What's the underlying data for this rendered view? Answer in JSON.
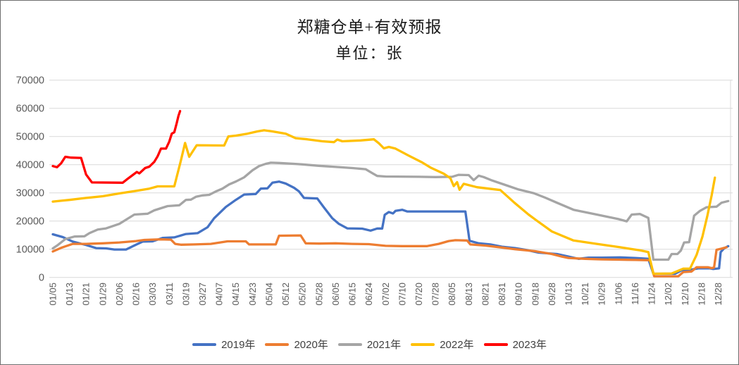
{
  "chart_data": {
    "type": "line",
    "title": "郑糖仓单+有效预报",
    "subtitle": "单位：张",
    "unit": "张",
    "grid": "horizontal",
    "legend_position": "bottom",
    "ylim": [
      0,
      70000
    ],
    "ytick_step": 10000,
    "ytick_labels": [
      "0",
      "10000",
      "20000",
      "30000",
      "40000",
      "50000",
      "60000",
      "70000"
    ],
    "gridline_color": "#D9D9D9",
    "tick_label_color": "#595959",
    "categories": [
      "01/05",
      "01/13",
      "01/21",
      "01/29",
      "02/06",
      "02/16",
      "03/03",
      "03/11",
      "03/19",
      "03/27",
      "04/07",
      "04/15",
      "04/23",
      "05/04",
      "05/12",
      "05/20",
      "05/28",
      "06/05",
      "06/15",
      "06/24",
      "07/02",
      "07/10",
      "07/20",
      "07/28",
      "08/05",
      "08/13",
      "08/21",
      "08/31",
      "09/10",
      "09/18",
      "09/28",
      "10/13",
      "10/21",
      "10/29",
      "11/06",
      "11/16",
      "11/24",
      "12/02",
      "12/10",
      "12/18",
      "12/28"
    ],
    "points_format": "[category_index, value]",
    "series": [
      {
        "name": "2019年",
        "color": "#4472C4",
        "points": [
          [
            0,
            15300
          ],
          [
            0.6,
            14300
          ],
          [
            1.2,
            12700
          ],
          [
            2,
            11500
          ],
          [
            2.6,
            10400
          ],
          [
            3.2,
            10300
          ],
          [
            3.7,
            9900
          ],
          [
            4.4,
            9900
          ],
          [
            5,
            11600
          ],
          [
            5.4,
            12700
          ],
          [
            6,
            12800
          ],
          [
            6.6,
            14000
          ],
          [
            7.3,
            14200
          ],
          [
            8,
            15400
          ],
          [
            8.7,
            15700
          ],
          [
            9.3,
            17800
          ],
          [
            9.7,
            21000
          ],
          [
            10.4,
            25000
          ],
          [
            11,
            27500
          ],
          [
            11.5,
            29400
          ],
          [
            12.2,
            29600
          ],
          [
            12.5,
            31500
          ],
          [
            12.9,
            31600
          ],
          [
            13.2,
            33600
          ],
          [
            13.6,
            34000
          ],
          [
            14,
            33300
          ],
          [
            14.5,
            31800
          ],
          [
            14.8,
            30500
          ],
          [
            15.1,
            28200
          ],
          [
            15.9,
            28000
          ],
          [
            16.3,
            24800
          ],
          [
            16.8,
            21000
          ],
          [
            17.2,
            19000
          ],
          [
            17.7,
            17400
          ],
          [
            18.6,
            17300
          ],
          [
            19.1,
            16600
          ],
          [
            19.5,
            17350
          ],
          [
            19.8,
            17350
          ],
          [
            19.95,
            22200
          ],
          [
            20.2,
            23200
          ],
          [
            20.45,
            22700
          ],
          [
            20.6,
            23600
          ],
          [
            21,
            24000
          ],
          [
            21.3,
            23400
          ],
          [
            24.8,
            23400
          ],
          [
            25.05,
            13000
          ],
          [
            25.6,
            12100
          ],
          [
            26.3,
            11700
          ],
          [
            27,
            10900
          ],
          [
            27.8,
            10400
          ],
          [
            28.5,
            9700
          ],
          [
            29.2,
            8800
          ],
          [
            30.3,
            8300
          ],
          [
            31,
            7400
          ],
          [
            31.6,
            6600
          ],
          [
            32.2,
            7000
          ],
          [
            33,
            7000
          ],
          [
            34.1,
            7100
          ],
          [
            35,
            6900
          ],
          [
            35.8,
            6600
          ],
          [
            36.1,
            1300
          ],
          [
            37.4,
            1300
          ],
          [
            37.8,
            2500
          ],
          [
            38.3,
            2700
          ],
          [
            38.8,
            3200
          ],
          [
            39.5,
            3200
          ],
          [
            39.7,
            3000
          ],
          [
            40.05,
            3200
          ],
          [
            40.15,
            9000
          ],
          [
            40.35,
            10300
          ],
          [
            40.6,
            11100
          ]
        ]
      },
      {
        "name": "2020年",
        "color": "#ED7D31",
        "points": [
          [
            0,
            9200
          ],
          [
            0.5,
            10500
          ],
          [
            1.2,
            11900
          ],
          [
            2,
            11900
          ],
          [
            3,
            12100
          ],
          [
            4,
            12400
          ],
          [
            5,
            12900
          ],
          [
            5.5,
            13300
          ],
          [
            6.5,
            13500
          ],
          [
            7.1,
            13400
          ],
          [
            7.35,
            11900
          ],
          [
            7.7,
            11600
          ],
          [
            8.5,
            11700
          ],
          [
            9.5,
            11900
          ],
          [
            10.5,
            12800
          ],
          [
            11.6,
            12800
          ],
          [
            11.8,
            11700
          ],
          [
            13.4,
            11700
          ],
          [
            13.6,
            14800
          ],
          [
            14.9,
            14900
          ],
          [
            15.2,
            12100
          ],
          [
            16,
            12000
          ],
          [
            17,
            12100
          ],
          [
            18,
            11900
          ],
          [
            19,
            11800
          ],
          [
            20,
            11200
          ],
          [
            21,
            11100
          ],
          [
            22.5,
            11100
          ],
          [
            23.2,
            11900
          ],
          [
            23.8,
            12900
          ],
          [
            24.2,
            13200
          ],
          [
            24.9,
            13100
          ],
          [
            25.1,
            11700
          ],
          [
            26,
            11300
          ],
          [
            27,
            10600
          ],
          [
            27.8,
            10000
          ],
          [
            29,
            9300
          ],
          [
            30,
            8300
          ],
          [
            30.6,
            7400
          ],
          [
            31,
            6900
          ],
          [
            32,
            6600
          ],
          [
            33,
            6400
          ],
          [
            34,
            6300
          ],
          [
            35,
            6200
          ],
          [
            35.9,
            6100
          ],
          [
            36.15,
            400
          ],
          [
            37.6,
            400
          ],
          [
            37.9,
            1900
          ],
          [
            38.4,
            2100
          ],
          [
            38.7,
            3600
          ],
          [
            39.4,
            3600
          ],
          [
            39.6,
            3300
          ],
          [
            39.75,
            3500
          ],
          [
            39.9,
            9800
          ],
          [
            40.2,
            10200
          ],
          [
            40.5,
            10700
          ]
        ]
      },
      {
        "name": "2021年",
        "color": "#A5A5A5",
        "points": [
          [
            0,
            10300
          ],
          [
            0.3,
            11500
          ],
          [
            0.75,
            13600
          ],
          [
            1.3,
            14500
          ],
          [
            1.9,
            14600
          ],
          [
            2.2,
            15700
          ],
          [
            2.7,
            17000
          ],
          [
            3.2,
            17400
          ],
          [
            4,
            19000
          ],
          [
            4.9,
            22300
          ],
          [
            5.7,
            22600
          ],
          [
            6.1,
            23800
          ],
          [
            6.9,
            25300
          ],
          [
            7.6,
            25600
          ],
          [
            8,
            27500
          ],
          [
            8.3,
            27600
          ],
          [
            8.6,
            28600
          ],
          [
            9,
            29100
          ],
          [
            9.4,
            29300
          ],
          [
            9.8,
            30500
          ],
          [
            10.2,
            31500
          ],
          [
            10.6,
            33000
          ],
          [
            11,
            34000
          ],
          [
            11.5,
            35500
          ],
          [
            12,
            38000
          ],
          [
            12.4,
            39500
          ],
          [
            12.8,
            40300
          ],
          [
            13.1,
            40700
          ],
          [
            13.6,
            40600
          ],
          [
            14.5,
            40300
          ],
          [
            15,
            40100
          ],
          [
            16,
            39600
          ],
          [
            17,
            39200
          ],
          [
            18,
            38800
          ],
          [
            18.8,
            38400
          ],
          [
            19.2,
            37000
          ],
          [
            19.5,
            36000
          ],
          [
            20,
            35800
          ],
          [
            22,
            35700
          ],
          [
            23,
            35600
          ],
          [
            24,
            35700
          ],
          [
            24.4,
            36400
          ],
          [
            25,
            36300
          ],
          [
            25.3,
            34500
          ],
          [
            25.6,
            36100
          ],
          [
            25.9,
            35600
          ],
          [
            26.4,
            34400
          ],
          [
            27.2,
            32800
          ],
          [
            28,
            31200
          ],
          [
            28.9,
            29900
          ],
          [
            29.6,
            28300
          ],
          [
            30.3,
            26500
          ],
          [
            31.3,
            24000
          ],
          [
            32.7,
            22300
          ],
          [
            34,
            20700
          ],
          [
            34.5,
            19900
          ],
          [
            34.8,
            22300
          ],
          [
            35.3,
            22500
          ],
          [
            35.8,
            21100
          ],
          [
            36.1,
            6300
          ],
          [
            37,
            6300
          ],
          [
            37.2,
            8300
          ],
          [
            37.55,
            8300
          ],
          [
            37.75,
            9500
          ],
          [
            37.95,
            12400
          ],
          [
            38.25,
            12500
          ],
          [
            38.55,
            21900
          ],
          [
            38.9,
            23600
          ],
          [
            39.3,
            24900
          ],
          [
            39.9,
            25100
          ],
          [
            40.2,
            26500
          ],
          [
            40.6,
            27100
          ]
        ]
      },
      {
        "name": "2022年",
        "color": "#FFC000",
        "points": [
          [
            0,
            26900
          ],
          [
            0.5,
            27200
          ],
          [
            1,
            27500
          ],
          [
            2,
            28200
          ],
          [
            3,
            28800
          ],
          [
            4,
            29800
          ],
          [
            5,
            30700
          ],
          [
            5.8,
            31500
          ],
          [
            6.3,
            32300
          ],
          [
            7.3,
            32300
          ],
          [
            7.7,
            41500
          ],
          [
            7.95,
            47700
          ],
          [
            8.2,
            42800
          ],
          [
            8.65,
            46900
          ],
          [
            10.3,
            46800
          ],
          [
            10.55,
            50000
          ],
          [
            11,
            50300
          ],
          [
            11.7,
            51000
          ],
          [
            12.3,
            51800
          ],
          [
            12.7,
            52200
          ],
          [
            13.2,
            51800
          ],
          [
            14,
            51000
          ],
          [
            14.6,
            49400
          ],
          [
            15.3,
            49000
          ],
          [
            16.2,
            48300
          ],
          [
            16.9,
            48000
          ],
          [
            17.1,
            48900
          ],
          [
            17.4,
            48300
          ],
          [
            18.5,
            48600
          ],
          [
            19.3,
            49000
          ],
          [
            19.6,
            47600
          ],
          [
            19.9,
            45800
          ],
          [
            20.2,
            46300
          ],
          [
            20.6,
            45700
          ],
          [
            21.4,
            43200
          ],
          [
            22.2,
            40800
          ],
          [
            22.7,
            39000
          ],
          [
            23.5,
            36800
          ],
          [
            23.9,
            35200
          ],
          [
            24.1,
            32400
          ],
          [
            24.3,
            33800
          ],
          [
            24.45,
            31100
          ],
          [
            24.7,
            33200
          ],
          [
            25.5,
            32000
          ],
          [
            26.9,
            31000
          ],
          [
            27.75,
            26500
          ],
          [
            28.6,
            22300
          ],
          [
            29.15,
            19900
          ],
          [
            30,
            16300
          ],
          [
            31.3,
            13100
          ],
          [
            32.7,
            11900
          ],
          [
            34.1,
            10700
          ],
          [
            35.3,
            9600
          ],
          [
            35.8,
            9000
          ],
          [
            36.1,
            1300
          ],
          [
            37.2,
            1400
          ],
          [
            37.9,
            3100
          ],
          [
            38.3,
            3100
          ],
          [
            38.7,
            8000
          ],
          [
            39.05,
            14500
          ],
          [
            39.35,
            22000
          ],
          [
            39.6,
            29000
          ],
          [
            39.8,
            35400
          ]
        ]
      },
      {
        "name": "2023年",
        "color": "#FF0000",
        "points": [
          [
            0,
            39500
          ],
          [
            0.25,
            39100
          ],
          [
            0.5,
            40500
          ],
          [
            0.75,
            42800
          ],
          [
            1.1,
            42500
          ],
          [
            1.7,
            42400
          ],
          [
            2,
            36500
          ],
          [
            2.35,
            33700
          ],
          [
            4.2,
            33600
          ],
          [
            4.5,
            35000
          ],
          [
            4.8,
            36300
          ],
          [
            5.05,
            37400
          ],
          [
            5.2,
            36900
          ],
          [
            5.55,
            38800
          ],
          [
            5.8,
            39300
          ],
          [
            6.1,
            41000
          ],
          [
            6.3,
            43000
          ],
          [
            6.5,
            45700
          ],
          [
            6.8,
            45700
          ],
          [
            7,
            48200
          ],
          [
            7.15,
            51000
          ],
          [
            7.3,
            51500
          ],
          [
            7.45,
            54800
          ],
          [
            7.55,
            57300
          ],
          [
            7.65,
            59000
          ]
        ]
      }
    ]
  }
}
